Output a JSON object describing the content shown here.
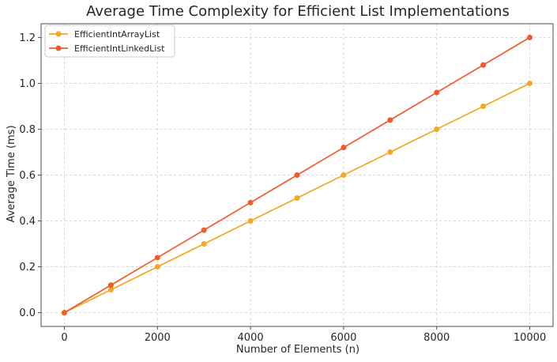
{
  "chart_data": {
    "type": "line",
    "title": "Average Time Complexity for Efficient List Implementations",
    "xlabel": "Number of Elements (n)",
    "ylabel": "Average Time (ms)",
    "x": [
      0,
      1000,
      2000,
      3000,
      4000,
      5000,
      6000,
      7000,
      8000,
      9000,
      10000
    ],
    "xlim": [
      -500,
      10500
    ],
    "ylim": [
      -0.06,
      1.26
    ],
    "xticks": [
      0,
      2000,
      4000,
      6000,
      8000,
      10000
    ],
    "xtick_labels": [
      "0",
      "2000",
      "4000",
      "6000",
      "8000",
      "10000"
    ],
    "yticks": [
      0.0,
      0.2,
      0.4,
      0.6,
      0.8,
      1.0,
      1.2
    ],
    "ytick_labels": [
      "0.0",
      "0.2",
      "0.4",
      "0.6",
      "0.8",
      "1.0",
      "1.2"
    ],
    "grid": true,
    "legend_position": "top-left",
    "series": [
      {
        "name": "EfficientIntArrayList",
        "color": "#f5a623",
        "values": [
          0.0,
          0.1,
          0.2,
          0.3,
          0.4,
          0.5,
          0.6,
          0.7,
          0.8,
          0.9,
          1.0
        ]
      },
      {
        "name": "EfficientIntLinkedList",
        "color": "#f15a29",
        "values": [
          0.0,
          0.12,
          0.24,
          0.36,
          0.48,
          0.6,
          0.72,
          0.84,
          0.96,
          1.08,
          1.2
        ]
      }
    ]
  }
}
